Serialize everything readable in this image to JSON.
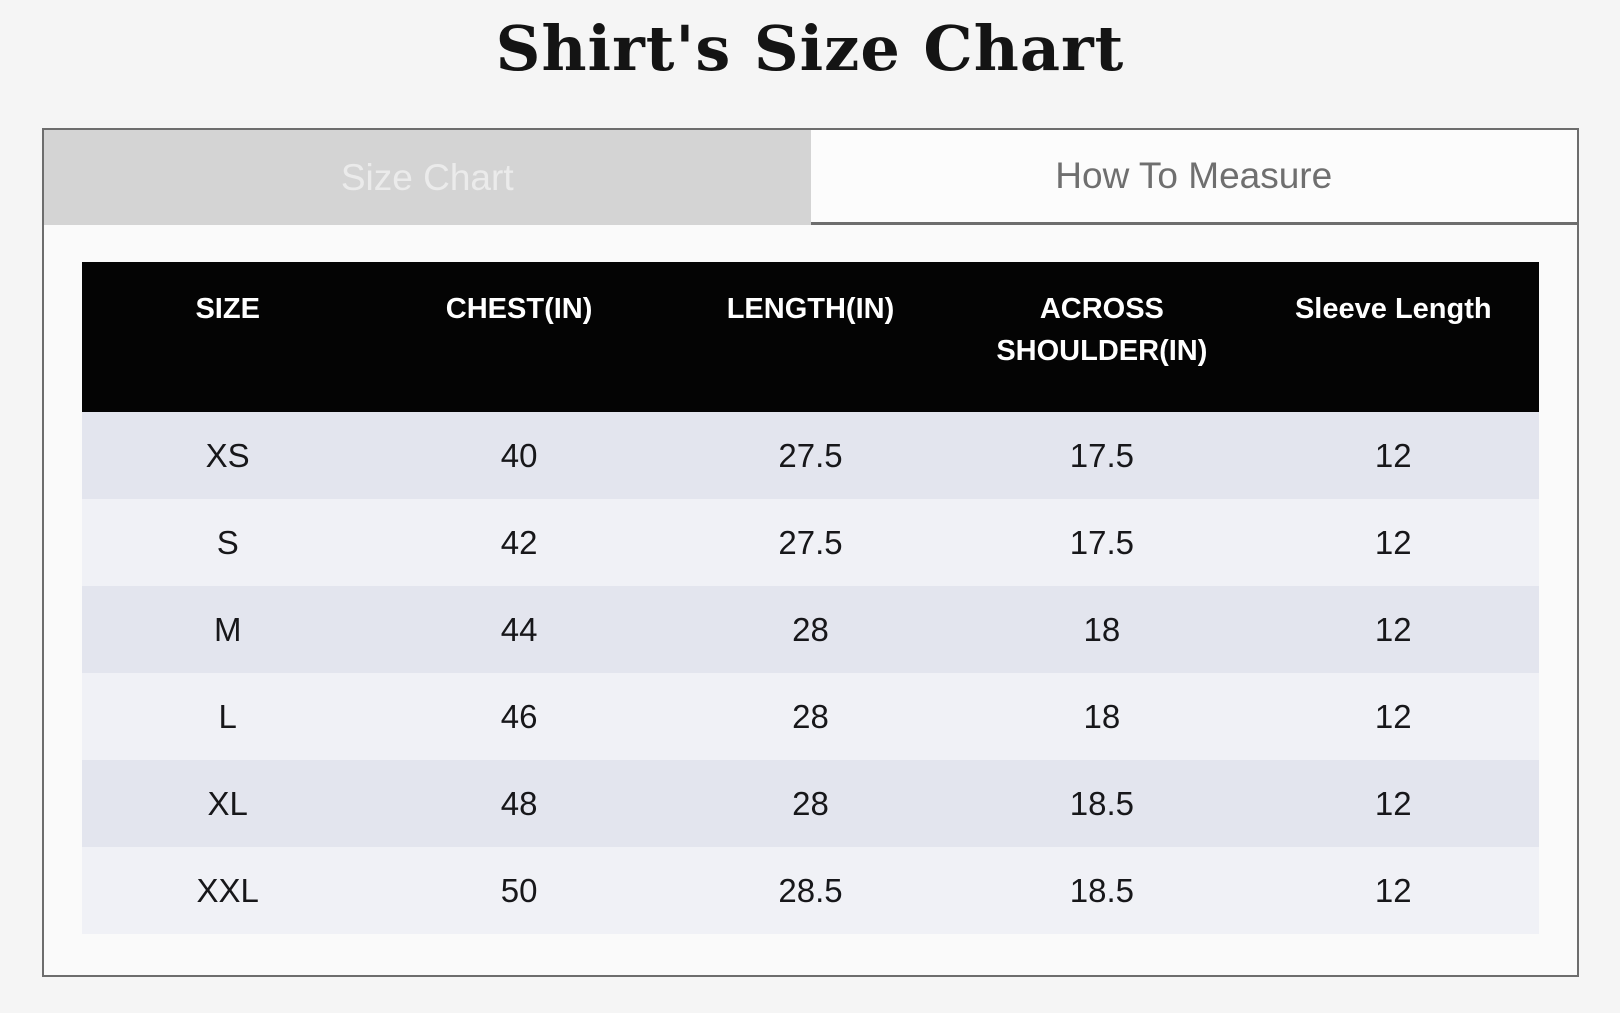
{
  "page": {
    "title": "Shirt's Size Chart"
  },
  "tabs": {
    "size_chart": {
      "label": "Size Chart",
      "active": true
    },
    "how_to_measure": {
      "label": "How To Measure",
      "active": false
    }
  },
  "table": {
    "columns": [
      "SIZE",
      "CHEST(IN)",
      "LENGTH(IN)",
      "ACROSS SHOULDER(IN)",
      "Sleeve Length"
    ],
    "rows": [
      {
        "size": "XS",
        "chest": "40",
        "length": "27.5",
        "shoulder": "17.5",
        "sleeve": "12"
      },
      {
        "size": "S",
        "chest": "42",
        "length": "27.5",
        "shoulder": "17.5",
        "sleeve": "12"
      },
      {
        "size": "M",
        "chest": "44",
        "length": "28",
        "shoulder": "18",
        "sleeve": "12"
      },
      {
        "size": "L",
        "chest": "46",
        "length": "28",
        "shoulder": "18",
        "sleeve": "12"
      },
      {
        "size": "XL",
        "chest": "48",
        "length": "28",
        "shoulder": "18.5",
        "sleeve": "12"
      },
      {
        "size": "XXL",
        "chest": "50",
        "length": "28.5",
        "shoulder": "18.5",
        "sleeve": "12"
      }
    ]
  },
  "colors": {
    "page-bg": "#f5f5f5",
    "panel-border": "#6d6d6d",
    "tab-active-bg": "#d4d4d4",
    "tab-active-text": "#ebebeb",
    "tab-inactive-bg": "#fcfcfc",
    "tab-inactive-text": "#6f6f6f",
    "content-bg": "#fafafa",
    "header-bg": "#040404",
    "header-text": "#ffffff",
    "row-dark": "#e3e5ee",
    "row-light": "#f0f1f6",
    "cell-text": "#17171a"
  }
}
